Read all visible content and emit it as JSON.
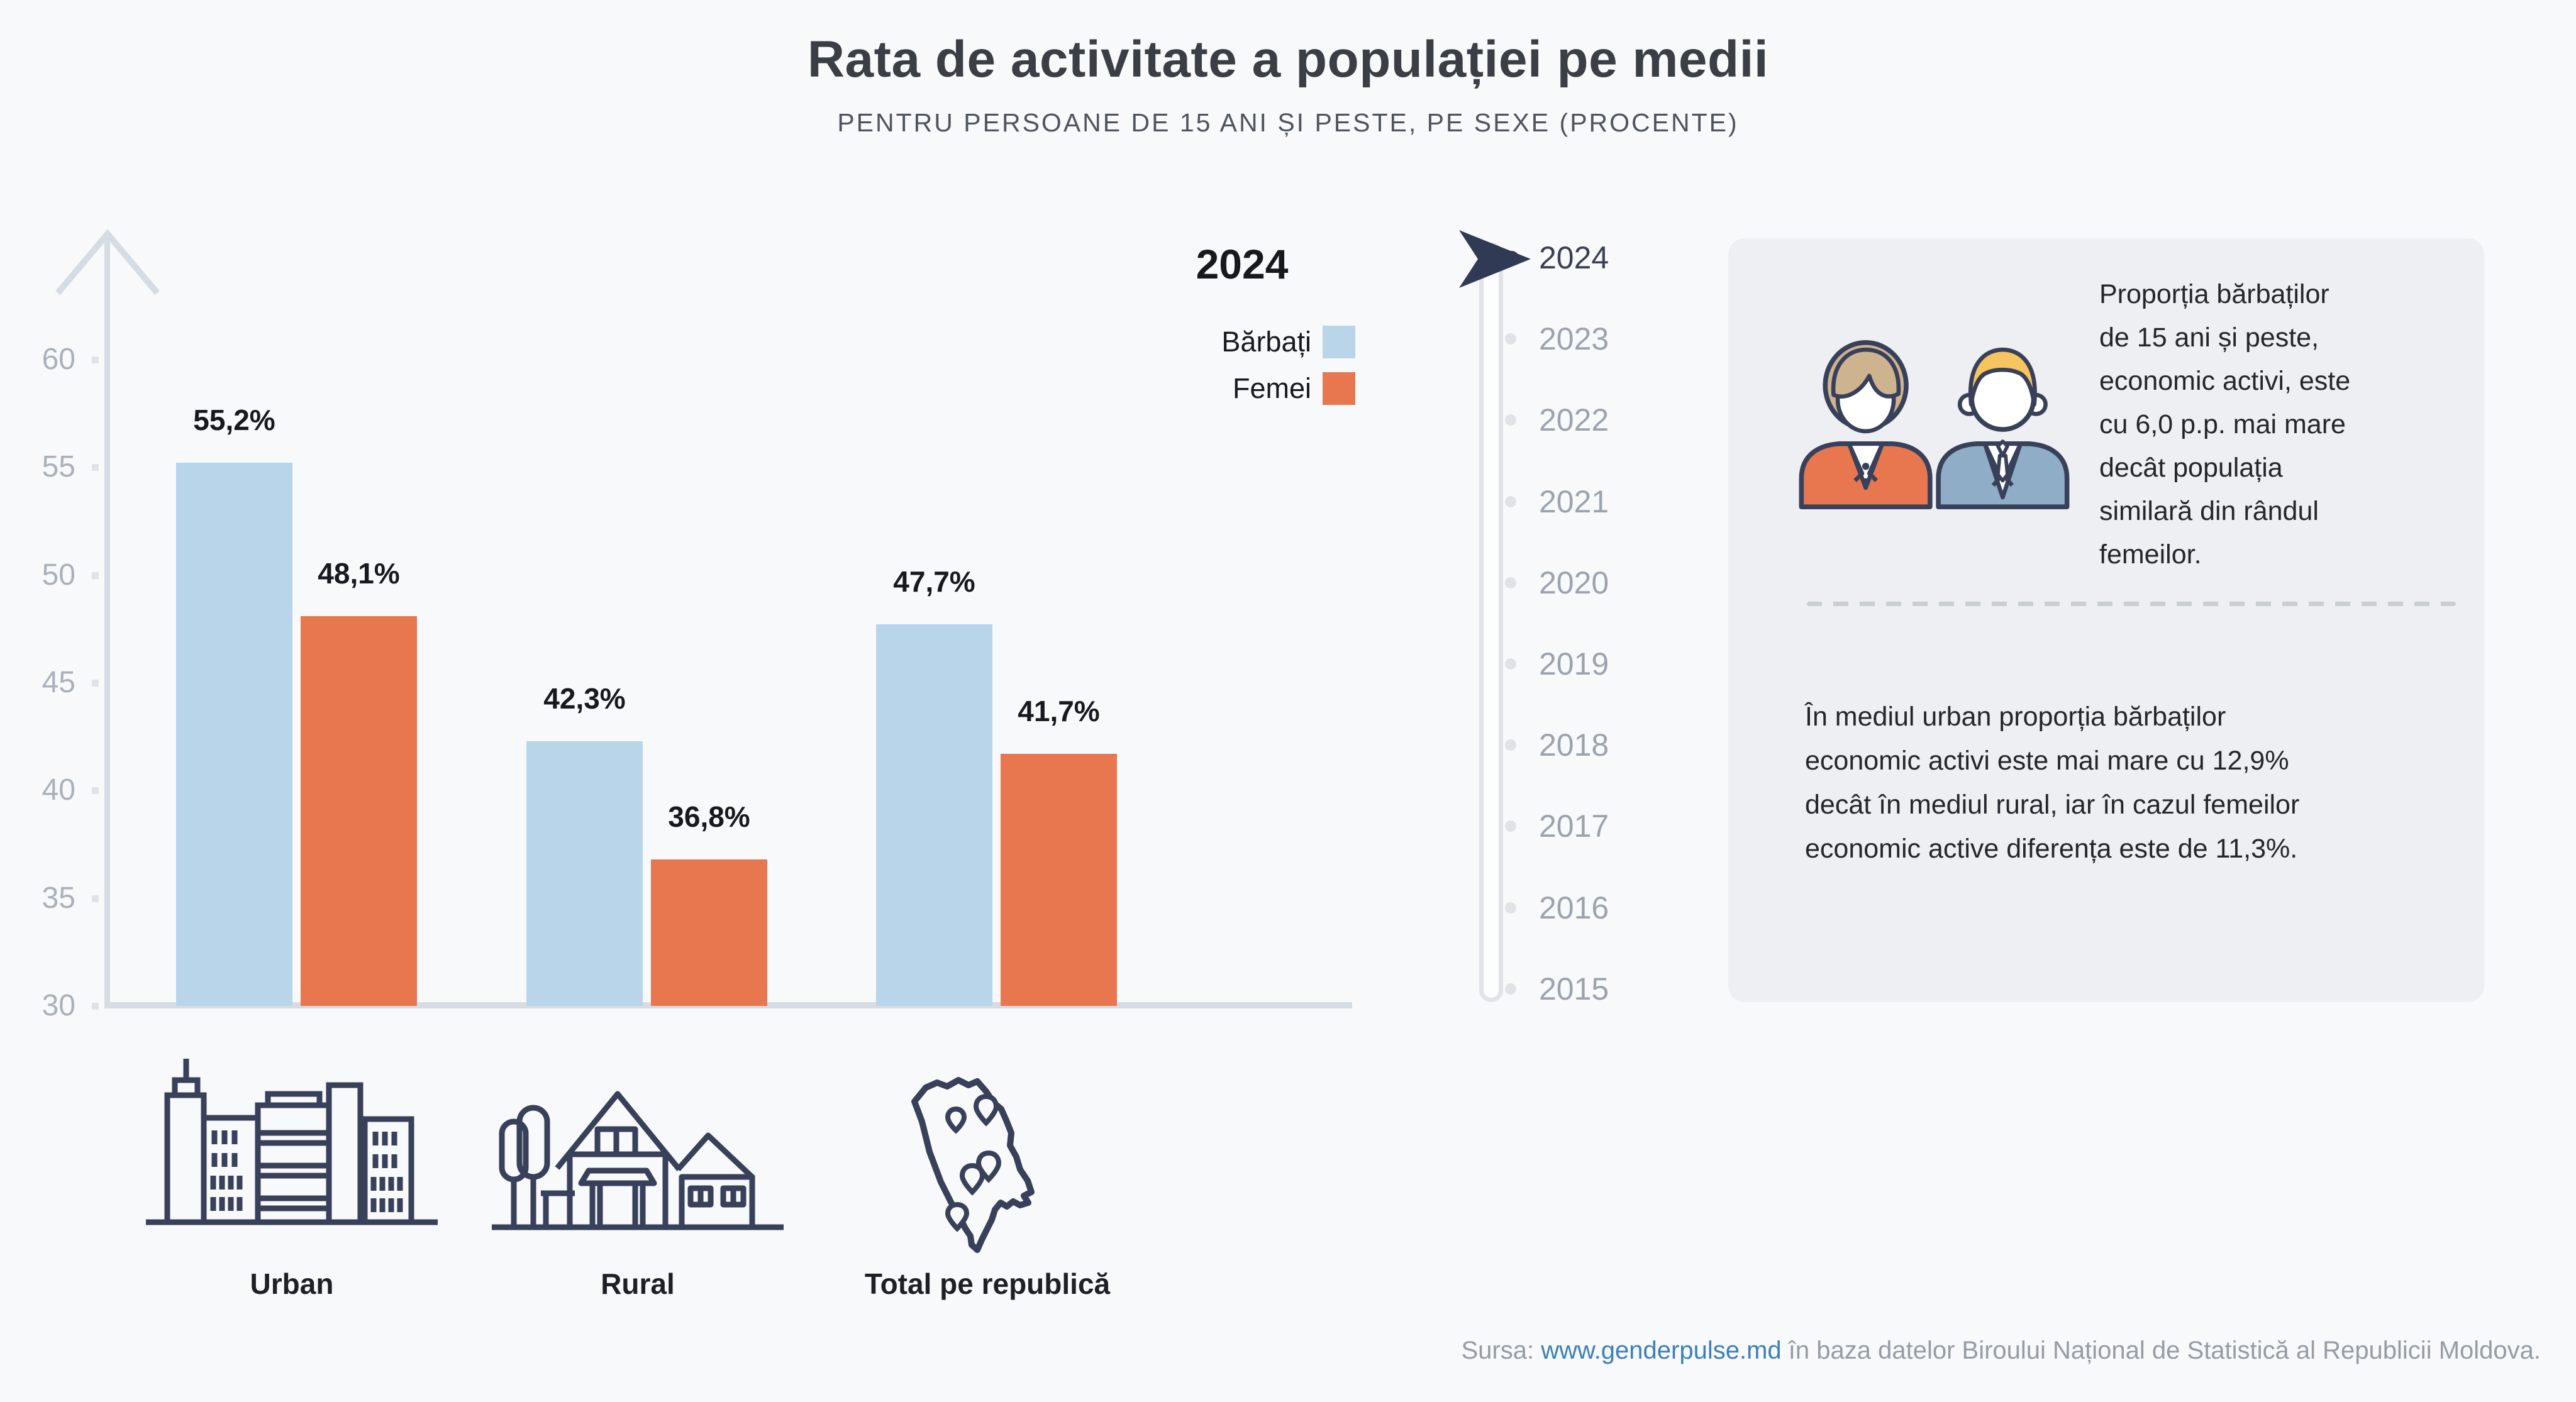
{
  "header": {
    "title": "Rata de activitate a populației pe medii",
    "subtitle": "PENTRU PERSOANE DE 15 ANI ȘI PESTE, PE SEXE (PROCENTE)"
  },
  "chart_data": {
    "type": "bar",
    "title": "Rata de activitate a populației pe medii",
    "subtitle": "PENTRU PERSOANE DE 15 ANI ȘI PESTE, PE SEXE (PROCENTE)",
    "unit": "%",
    "decimal_separator": ",",
    "categories": [
      "Urban",
      "Rural",
      "Total pe republică"
    ],
    "series": [
      {
        "name": "Bărbați",
        "color": "#b8d5e9",
        "values": [
          55.2,
          42.3,
          47.7
        ],
        "labels": [
          "55,2%",
          "42,3%",
          "47,7%"
        ]
      },
      {
        "name": "Femei",
        "color": "#e8764f",
        "values": [
          48.1,
          36.8,
          41.7
        ],
        "labels": [
          "48,1%",
          "36,8%",
          "41,7%"
        ]
      }
    ],
    "ylim": [
      30,
      60
    ],
    "yticks": [
      60,
      55,
      50,
      45,
      40,
      35,
      30
    ],
    "grid": false,
    "legend_position": "top-right",
    "selected_year": "2024"
  },
  "legend": {
    "year": "2024",
    "items": [
      {
        "label": "Bărbați",
        "color": "#b8d5e9"
      },
      {
        "label": "Femei",
        "color": "#e8764f"
      }
    ]
  },
  "timeline": {
    "selected": "2024",
    "years": [
      "2024",
      "2023",
      "2022",
      "2021",
      "2020",
      "2019",
      "2018",
      "2017",
      "2016",
      "2015"
    ]
  },
  "infobox": {
    "paragraph1": [
      "Proporția bărbaților",
      "de 15 ani și peste,",
      "economic activi, este",
      "cu 6,0 p.p. mai mare",
      "decât populația",
      "similară din rândul",
      "femeilor."
    ],
    "paragraph2": [
      "În mediul urban proporția bărbaților",
      "economic activi este mai mare cu 12,9%",
      "decât în mediul rural, iar în cazul femeilor",
      "economic active diferența este de 11,3%."
    ]
  },
  "footer": {
    "prefix": "Sursa:",
    "link": "www.genderpulse.md",
    "suffix": "în baza datelor Biroului Național de Statistică al Republicii Moldova."
  },
  "colors": {
    "background": "#f8f9fb",
    "axis": "#d6dce3",
    "bar_male": "#b8d5e9",
    "bar_female": "#e8764f",
    "navy_outline": "#38405a",
    "year_inactive": "#9ba4ae",
    "year_active": "#3a4150",
    "infobox_bg": "#edeff2",
    "link_blue": "#3d80b9",
    "footer_gray": "#959ca5"
  }
}
